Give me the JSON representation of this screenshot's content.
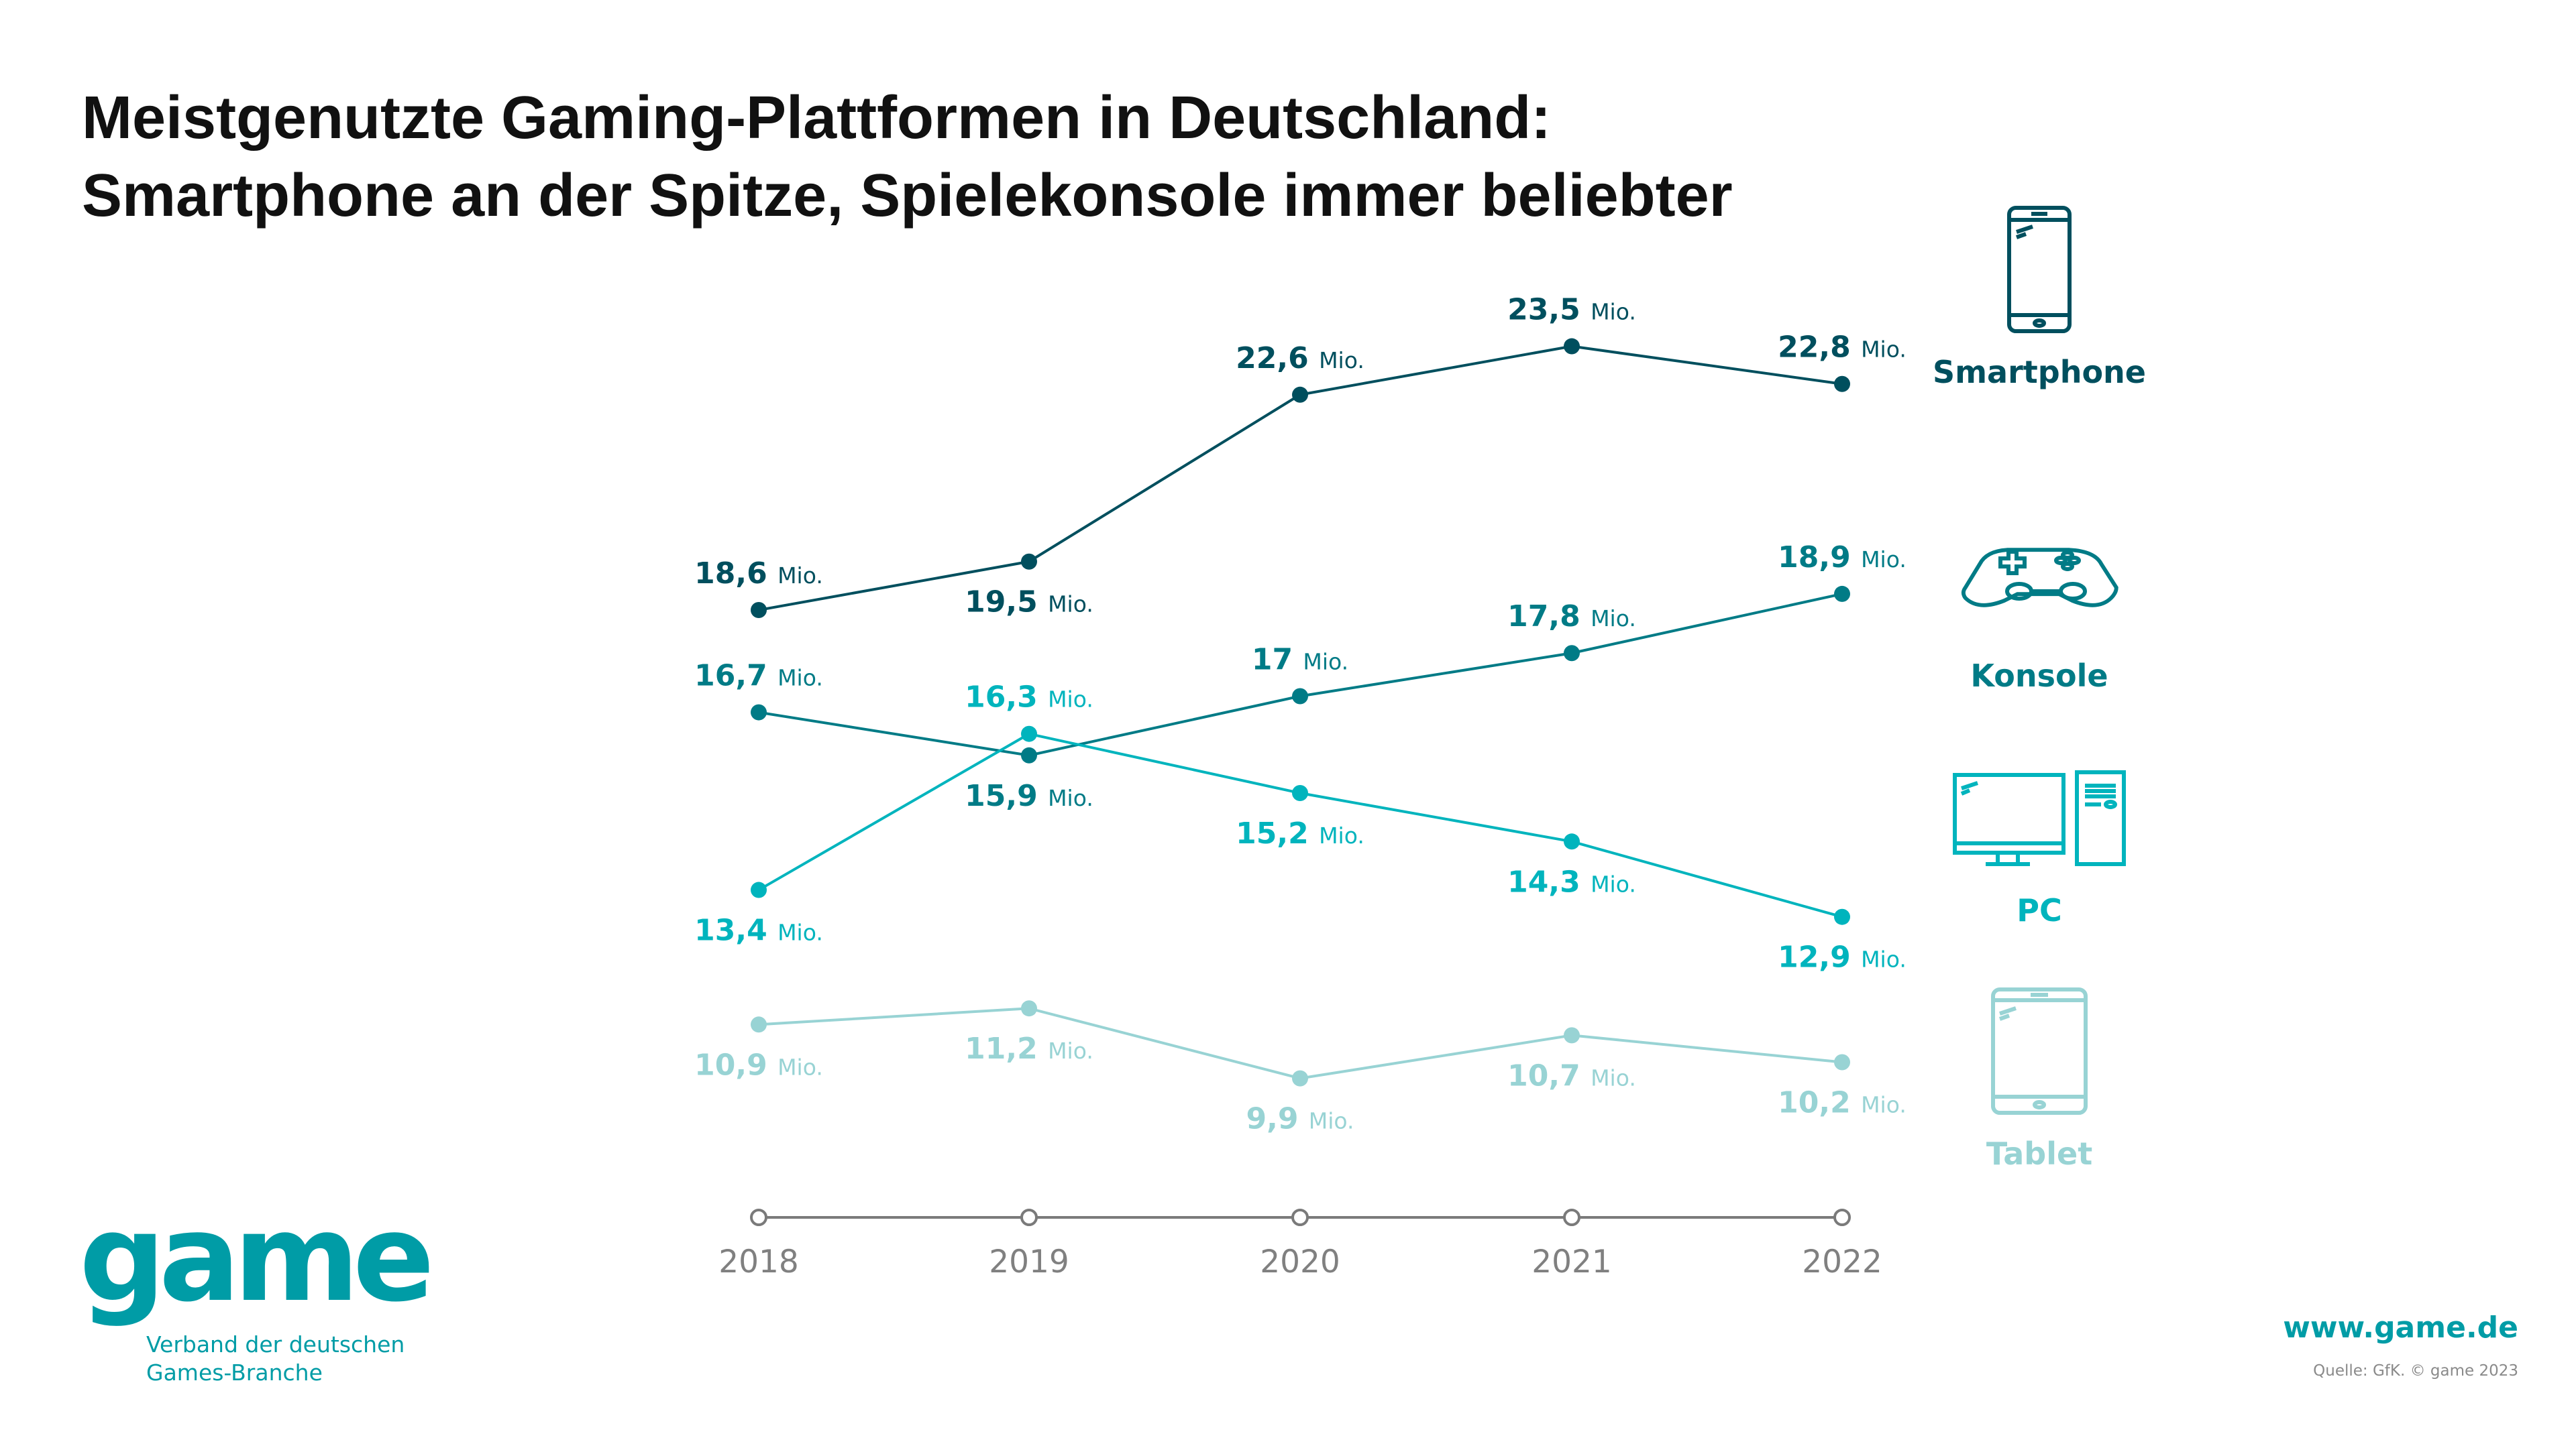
{
  "title_lines": [
    "Meistgenutzte Gaming-Plattformen in Deutschland:",
    "Smartphone an der Spitze, Spielekonsole immer beliebter"
  ],
  "chart_data": {
    "type": "line",
    "categories": [
      "2018",
      "2019",
      "2020",
      "2021",
      "2022"
    ],
    "unit": "Mio.",
    "series": [
      {
        "name": "Smartphone",
        "color": "#004f5e",
        "values": [
          18.6,
          19.5,
          22.6,
          23.5,
          22.8
        ],
        "labels": [
          "18,6",
          "19,5",
          "22,6",
          "23,5",
          "22,8"
        ],
        "label_pos": [
          "above",
          "below",
          "above",
          "above",
          "above"
        ]
      },
      {
        "name": "Konsole",
        "color": "#007b86",
        "values": [
          16.7,
          15.9,
          17,
          17.8,
          18.9
        ],
        "labels": [
          "16,7",
          "15,9",
          "17",
          "17,8",
          "18,9"
        ],
        "label_pos": [
          "above",
          "below",
          "above",
          "above",
          "above"
        ]
      },
      {
        "name": "PC",
        "color": "#00b4bd",
        "values": [
          13.4,
          16.3,
          15.2,
          14.3,
          12.9
        ],
        "labels": [
          "13,4",
          "16,3",
          "15,2",
          "14,3",
          "12,9"
        ],
        "label_pos": [
          "below",
          "above",
          "below",
          "below",
          "below"
        ]
      },
      {
        "name": "Tablet",
        "color": "#98d3d4",
        "values": [
          10.9,
          11.2,
          9.9,
          10.7,
          10.2
        ],
        "labels": [
          "10,9",
          "11,2",
          "9,9",
          "10,7",
          "10,2"
        ],
        "label_pos": [
          "below",
          "below",
          "below",
          "below",
          "below"
        ]
      }
    ],
    "axis_color": "#7a7a7a",
    "grid": false
  },
  "legend": {
    "smartphone": {
      "label": "Smartphone",
      "icon": "smartphone-icon"
    },
    "konsole": {
      "label": "Konsole",
      "icon": "gamepad-icon"
    },
    "pc": {
      "label": "PC",
      "icon": "desktop-pc-icon"
    },
    "tablet": {
      "label": "Tablet",
      "icon": "tablet-icon"
    }
  },
  "logo": {
    "word": "game",
    "sub1": "Verband der deutschen",
    "sub2": "Games-Branche",
    "color": "#009ca6"
  },
  "footer": {
    "url": "www.game.de",
    "source": "Quelle: GfK. © game 2023"
  }
}
